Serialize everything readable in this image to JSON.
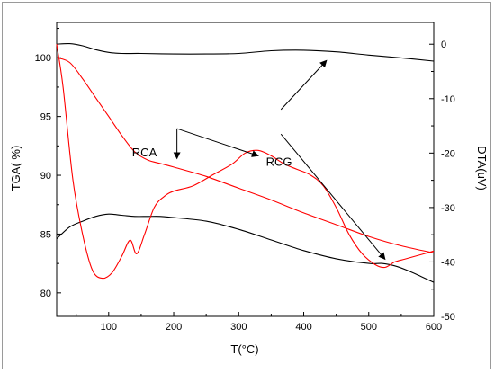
{
  "chart_data": {
    "type": "line",
    "xlabel": "T(°C)",
    "ylabel_left": "TGA( %)",
    "ylabel_right": "DTA(uV)",
    "xlim": [
      20,
      600
    ],
    "ylim_left": [
      78,
      103
    ],
    "ylim_right": [
      -50,
      4
    ],
    "x_ticks": [
      "100",
      "200",
      "300",
      "400",
      "500",
      "600"
    ],
    "y_left_ticks": [
      "80",
      "85",
      "90",
      "95",
      "100"
    ],
    "y_right_ticks": [
      "0",
      "-10",
      "-20",
      "-30",
      "-40",
      "-50"
    ],
    "annotations": [
      "RCA",
      "RCG"
    ],
    "colors": {
      "rca": "#ff0000",
      "rcg": "#000000"
    },
    "series": [
      {
        "color": "#ff0000",
        "axis": "left",
        "x": [
          20,
          40,
          60,
          80,
          100,
          120,
          140,
          160,
          180,
          200,
          250,
          300,
          350,
          400,
          450,
          500,
          550,
          600
        ],
        "values": [
          100,
          99.6,
          98.2,
          96.6,
          95.0,
          93.4,
          92.0,
          91.3,
          91.0,
          90.7,
          89.9,
          88.9,
          87.9,
          86.8,
          85.8,
          84.8,
          84.0,
          83.4
        ]
      },
      {
        "color": "#000000",
        "axis": "left",
        "x": [
          20,
          40,
          60,
          80,
          100,
          120,
          140,
          160,
          180,
          200,
          250,
          300,
          350,
          400,
          450,
          500,
          520,
          540,
          560,
          580,
          600
        ],
        "values": [
          84.6,
          85.6,
          86.1,
          86.5,
          86.7,
          86.6,
          86.5,
          86.5,
          86.5,
          86.4,
          86.1,
          85.4,
          84.5,
          83.6,
          82.9,
          82.5,
          82.5,
          82.3,
          81.9,
          81.4,
          80.9
        ]
      },
      {
        "color": "#000000",
        "axis": "right",
        "x": [
          20,
          40,
          60,
          80,
          100,
          120,
          150,
          200,
          250,
          300,
          350,
          400,
          450,
          500,
          550,
          600
        ],
        "values": [
          0,
          0.1,
          -0.3,
          -1.0,
          -1.5,
          -1.7,
          -1.7,
          -1.8,
          -1.8,
          -1.7,
          -1.2,
          -1.1,
          -1.4,
          -2.0,
          -2.5,
          -3.1
        ]
      },
      {
        "color": "#ff0000",
        "axis": "right",
        "x": [
          20,
          30,
          45,
          60,
          75,
          90,
          105,
          120,
          133,
          143,
          155,
          170,
          185,
          200,
          230,
          260,
          290,
          310,
          330,
          350,
          370,
          390,
          410,
          430,
          450,
          470,
          490,
          510,
          525,
          540,
          555,
          570,
          585,
          600
        ],
        "values": [
          0,
          -8,
          -25,
          -35,
          -41.5,
          -43,
          -42,
          -39,
          -36,
          -38.5,
          -35,
          -30,
          -28,
          -27,
          -26,
          -24,
          -22,
          -20,
          -19.5,
          -20.5,
          -22,
          -23,
          -24,
          -26,
          -30,
          -35,
          -38.5,
          -40.5,
          -41,
          -40,
          -39.5,
          -39,
          -38.5,
          -38
        ]
      }
    ],
    "arrows": [
      {
        "label": "RCA",
        "from": [
          205,
          -15.5
        ],
        "to": [
          205,
          -21
        ]
      },
      {
        "label": "RCA",
        "from": [
          205,
          -15.5
        ],
        "to": [
          330,
          -20.5
        ]
      },
      {
        "label": "RCG",
        "from": [
          365,
          -12
        ],
        "to": [
          435,
          -3
        ]
      },
      {
        "label": "RCG",
        "from": [
          365,
          -16.5
        ],
        "to": [
          525,
          -39.5
        ]
      }
    ],
    "labels": [
      {
        "text_key": "annotations.0",
        "at": [
          155,
          91.6
        ]
      },
      {
        "text_key": "annotations.1",
        "at": [
          362,
          90.8
        ]
      }
    ]
  }
}
